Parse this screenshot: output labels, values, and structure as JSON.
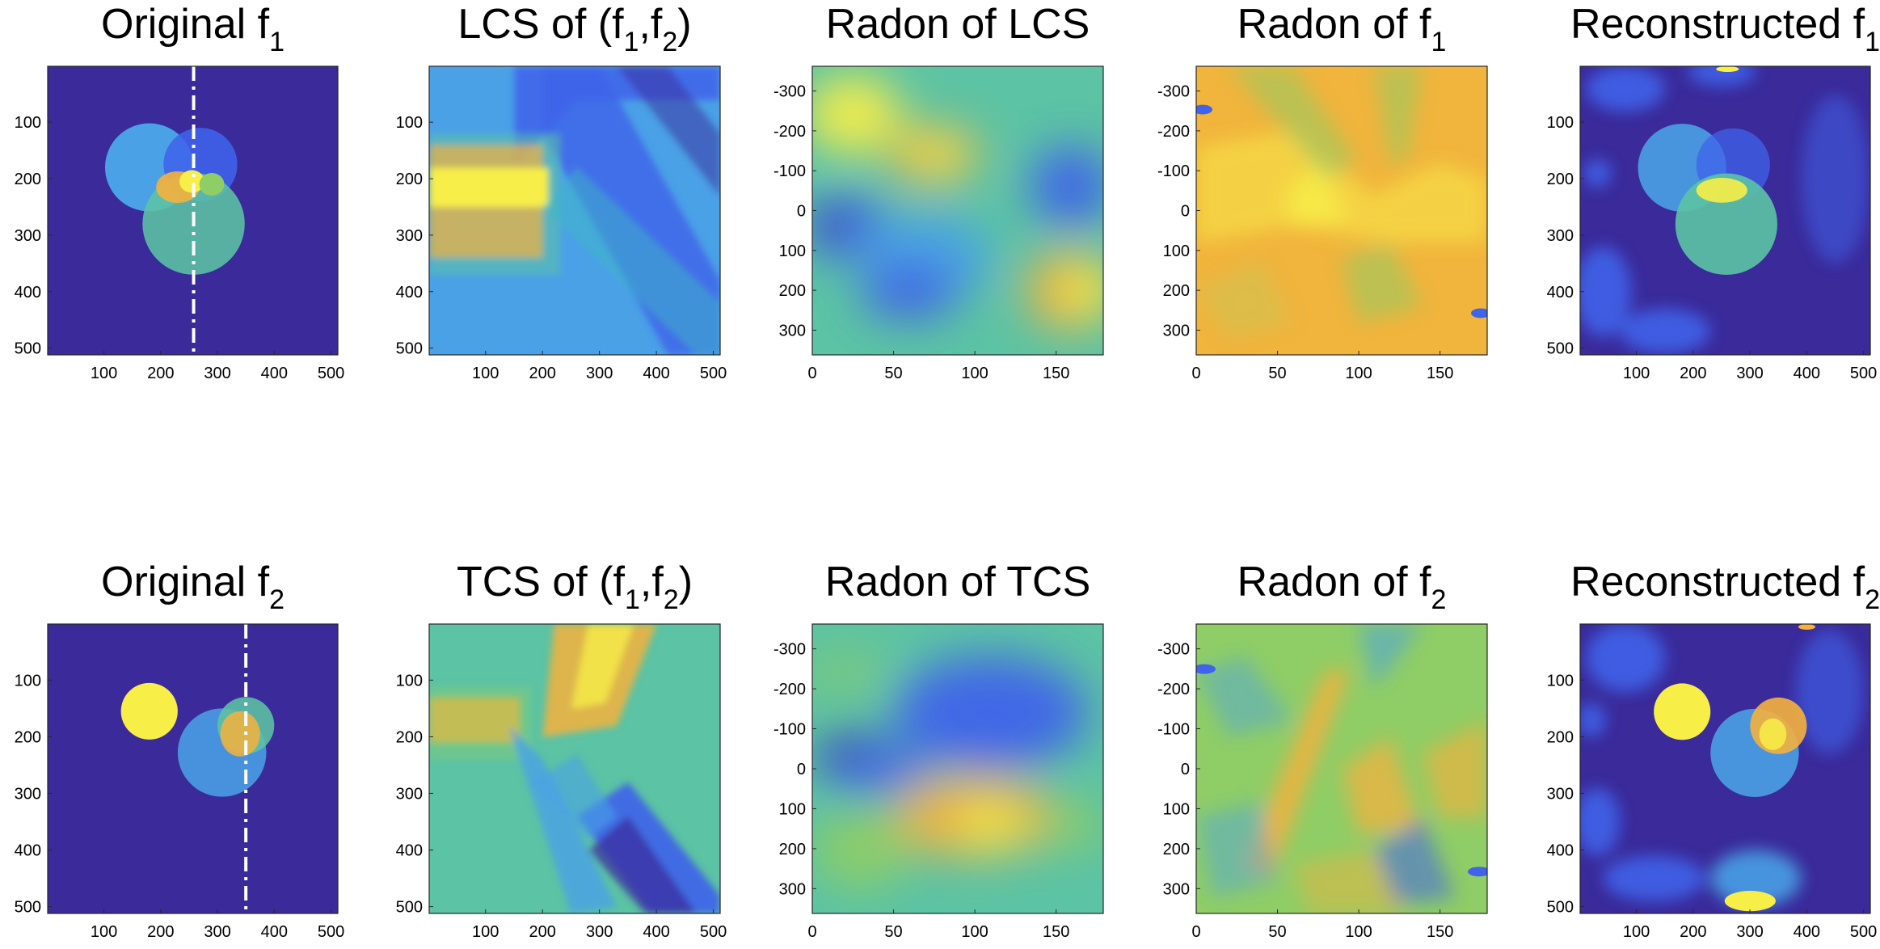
{
  "figure": {
    "colors": {
      "navy": "#3a2a9a",
      "blue": "#3f63ea",
      "lightblue": "#4aa1e6",
      "cyan": "#3cb7c6",
      "teal": "#5cc3a4",
      "green": "#8fcd66",
      "orange": "#f5b13d",
      "yellow": "#f8ee48"
    }
  },
  "chart_data": [
    {
      "type": "heatmap",
      "title_main": "Original f",
      "title_sub": "1",
      "title_rest": "",
      "xticks": [
        "100",
        "200",
        "300",
        "400",
        "500"
      ],
      "yticks": [
        "100",
        "200",
        "300",
        "400",
        "500"
      ],
      "xlim": [
        1,
        512
      ],
      "ylim": [
        1,
        512
      ],
      "marker_line_x": 258,
      "circles": [
        {
          "cx": 180,
          "cy": 180,
          "r": 78,
          "value": "lightblue"
        },
        {
          "cx": 270,
          "cy": 175,
          "r": 65,
          "value": "blue"
        },
        {
          "cx": 258,
          "cy": 280,
          "r": 90,
          "value": "teal"
        }
      ]
    },
    {
      "type": "heatmap",
      "title_main": "LCS of (f",
      "title_sub": "1",
      "title_rest": ",f",
      "title_sub2": "2",
      "title_end": ")",
      "xticks": [
        "100",
        "200",
        "300",
        "400",
        "500"
      ],
      "yticks": [
        "100",
        "200",
        "300",
        "400",
        "500"
      ],
      "xlim": [
        1,
        512
      ],
      "ylim": [
        1,
        512
      ]
    },
    {
      "type": "heatmap",
      "title_main": "Radon of LCS",
      "xticks": [
        "0",
        "50",
        "100",
        "150"
      ],
      "yticks": [
        "-300",
        "-200",
        "-100",
        "0",
        "100",
        "200",
        "300"
      ],
      "xlim": [
        0,
        179
      ],
      "ylim": [
        -362,
        362
      ]
    },
    {
      "type": "heatmap",
      "title_main": "Radon of f",
      "title_sub": "1",
      "xticks": [
        "0",
        "50",
        "100",
        "150"
      ],
      "yticks": [
        "-300",
        "-200",
        "-100",
        "0",
        "100",
        "200",
        "300"
      ],
      "xlim": [
        0,
        179
      ],
      "ylim": [
        -362,
        362
      ]
    },
    {
      "type": "heatmap",
      "title_main": "Reconstructed f",
      "title_sub": "1",
      "xticks": [
        "100",
        "200",
        "300",
        "400",
        "500"
      ],
      "yticks": [
        "100",
        "200",
        "300",
        "400",
        "500"
      ],
      "xlim": [
        1,
        512
      ],
      "ylim": [
        1,
        512
      ]
    },
    {
      "type": "heatmap",
      "title_main": "Original f",
      "title_sub": "2",
      "xticks": [
        "100",
        "200",
        "300",
        "400",
        "500"
      ],
      "yticks": [
        "100",
        "200",
        "300",
        "400",
        "500"
      ],
      "xlim": [
        1,
        512
      ],
      "ylim": [
        1,
        512
      ],
      "marker_line_x": 350,
      "circles": [
        {
          "cx": 180,
          "cy": 155,
          "r": 50,
          "value": "yellow"
        },
        {
          "cx": 308,
          "cy": 228,
          "r": 78,
          "value": "lightblue"
        },
        {
          "cx": 350,
          "cy": 180,
          "r": 50,
          "value": "teal"
        }
      ]
    },
    {
      "type": "heatmap",
      "title_main": "TCS of (f",
      "title_sub": "1",
      "title_rest": ",f",
      "title_sub2": "2",
      "title_end": ")",
      "xticks": [
        "100",
        "200",
        "300",
        "400",
        "500"
      ],
      "yticks": [
        "100",
        "200",
        "300",
        "400",
        "500"
      ],
      "xlim": [
        1,
        512
      ],
      "ylim": [
        1,
        512
      ]
    },
    {
      "type": "heatmap",
      "title_main": "Radon of TCS",
      "xticks": [
        "0",
        "50",
        "100",
        "150"
      ],
      "yticks": [
        "-300",
        "-200",
        "-100",
        "0",
        "100",
        "200",
        "300"
      ],
      "xlim": [
        0,
        179
      ],
      "ylim": [
        -362,
        362
      ]
    },
    {
      "type": "heatmap",
      "title_main": "Radon of f",
      "title_sub": "2",
      "xticks": [
        "0",
        "50",
        "100",
        "150"
      ],
      "yticks": [
        "-300",
        "-200",
        "-100",
        "0",
        "100",
        "200",
        "300"
      ],
      "xlim": [
        0,
        179
      ],
      "ylim": [
        -362,
        362
      ]
    },
    {
      "type": "heatmap",
      "title_main": "Reconstructed f",
      "title_sub": "2",
      "xticks": [
        "100",
        "200",
        "300",
        "400",
        "500"
      ],
      "yticks": [
        "100",
        "200",
        "300",
        "400",
        "500"
      ],
      "xlim": [
        1,
        512
      ],
      "ylim": [
        1,
        512
      ]
    }
  ]
}
